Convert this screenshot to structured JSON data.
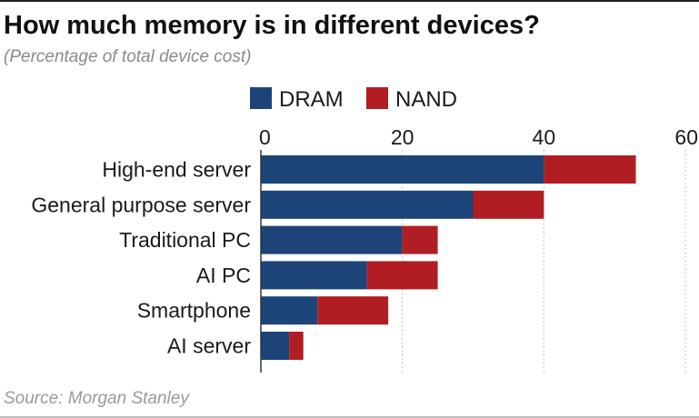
{
  "title": "How much memory is in different devices?",
  "subtitle": "(Percentage of total device cost)",
  "source": "Source: Morgan Stanley",
  "colors": {
    "dram": "#1c4478",
    "nand": "#b01e24",
    "grid": "#bdbdbd",
    "axis": "#333333"
  },
  "chart_data": {
    "type": "bar",
    "orientation": "horizontal",
    "stacked": true,
    "categories": [
      "High-end server",
      "General purpose server",
      "Traditional PC",
      "AI PC",
      "Smartphone",
      "AI server"
    ],
    "series": [
      {
        "name": "DRAM",
        "values": [
          40,
          30,
          20,
          15,
          8,
          4
        ]
      },
      {
        "name": "NAND",
        "values": [
          13,
          10,
          5,
          10,
          10,
          2
        ]
      }
    ],
    "xlim": [
      0,
      60
    ],
    "xticks": [
      "0",
      "20",
      "40",
      "60"
    ],
    "tick_values": [
      0,
      20,
      40,
      60
    ],
    "grid": true,
    "legend_position": "top",
    "xaxis_position": "top"
  }
}
